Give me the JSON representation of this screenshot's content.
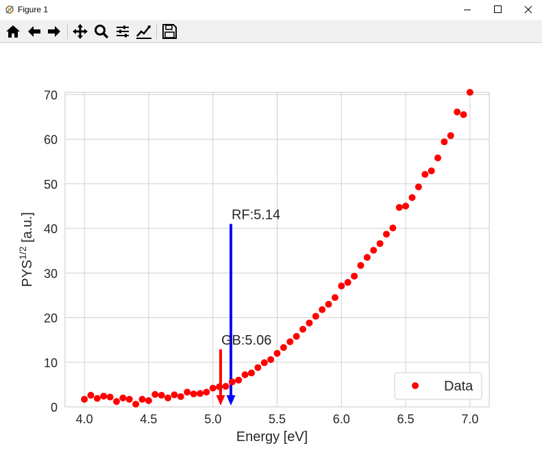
{
  "window": {
    "title": "Figure 1",
    "controls": [
      "minimize",
      "maximize",
      "close"
    ]
  },
  "toolbar": {
    "buttons": [
      {
        "name": "home-icon",
        "tooltip": "Home"
      },
      {
        "name": "back-icon",
        "tooltip": "Back"
      },
      {
        "name": "forward-icon",
        "tooltip": "Forward"
      },
      {
        "name": "pan-icon",
        "tooltip": "Pan"
      },
      {
        "name": "zoom-icon",
        "tooltip": "Zoom"
      },
      {
        "name": "subplots-icon",
        "tooltip": "Subplots"
      },
      {
        "name": "customize-icon",
        "tooltip": "Customize"
      },
      {
        "name": "save-icon",
        "tooltip": "Save"
      }
    ]
  },
  "chart_data": {
    "type": "scatter",
    "xlabel": "Energy [eV]",
    "ylabel": {
      "base": "PYS",
      "sup": "1/2",
      "unit": " [a.u.]"
    },
    "xlim": [
      3.85,
      7.15
    ],
    "ylim": [
      0,
      70.5
    ],
    "xticks": [
      "4.0",
      "4.5",
      "5.0",
      "5.5",
      "6.0",
      "6.5",
      "7.0"
    ],
    "yticks": [
      "0",
      "10",
      "20",
      "30",
      "40",
      "50",
      "60",
      "70"
    ],
    "grid": true,
    "legend": {
      "position": "lower-right",
      "label": "Data"
    },
    "series": [
      {
        "name": "Data",
        "color": "#ff0000",
        "x": [
          4.0,
          4.05,
          4.1,
          4.15,
          4.2,
          4.25,
          4.3,
          4.35,
          4.4,
          4.45,
          4.5,
          4.55,
          4.6,
          4.65,
          4.7,
          4.75,
          4.8,
          4.85,
          4.9,
          4.95,
          5.0,
          5.05,
          5.1,
          5.15,
          5.2,
          5.25,
          5.3,
          5.35,
          5.4,
          5.45,
          5.5,
          5.55,
          5.6,
          5.65,
          5.7,
          5.75,
          5.8,
          5.85,
          5.9,
          5.95,
          6.0,
          6.05,
          6.1,
          6.15,
          6.2,
          6.25,
          6.3,
          6.35,
          6.4,
          6.45,
          6.5,
          6.55,
          6.6,
          6.65,
          6.7,
          6.75,
          6.8,
          6.85,
          6.9,
          6.95,
          7.0
        ],
        "y": [
          1.7,
          2.6,
          1.9,
          2.4,
          2.2,
          1.2,
          2.0,
          1.7,
          0.6,
          1.7,
          1.4,
          2.8,
          2.6,
          2.0,
          2.7,
          2.3,
          3.3,
          2.9,
          3.0,
          3.3,
          4.2,
          4.5,
          4.6,
          5.6,
          6.0,
          7.2,
          7.6,
          8.8,
          9.9,
          10.6,
          12.0,
          13.3,
          14.6,
          15.8,
          17.4,
          18.8,
          20.3,
          21.8,
          23.0,
          24.5,
          27.1,
          27.9,
          29.3,
          31.7,
          33.5,
          35.1,
          36.6,
          38.7,
          40.1,
          44.7,
          45.0,
          46.9,
          49.3,
          52.1,
          52.9,
          55.8,
          59.4,
          60.8,
          66.1,
          65.5,
          70.5
        ]
      }
    ],
    "annotations": [
      {
        "text": "RF:5.14",
        "x": 5.14,
        "from_y": 41.0,
        "to_y": 0.3,
        "color": "#0000ff"
      },
      {
        "text": "GB:5.06",
        "x": 5.06,
        "from_y": 12.9,
        "to_y": 0.3,
        "color": "#ff0000"
      }
    ]
  }
}
